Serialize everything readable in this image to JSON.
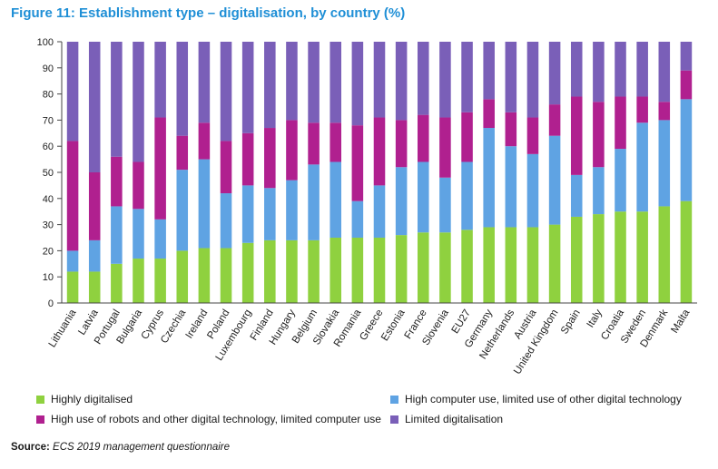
{
  "figure": {
    "title": "Figure 11: Establishment type – digitalisation, by country (%)"
  },
  "source": {
    "label": "Source:",
    "text": "ECS 2019 management questionnaire"
  },
  "colors": {
    "title": "#1f8fd6",
    "series": [
      "#8fd13f",
      "#5fa3e3",
      "#b0208f",
      "#7a5fb8"
    ]
  },
  "legend_text": {
    "s0": "Highly digitalised",
    "s1": "High computer use, limited use of other digital technology",
    "s2": "High use of robots and other digital technology, limited computer use",
    "s3": "Limited digitalisation"
  },
  "chart_data": {
    "type": "bar",
    "stacked": true,
    "title": "Figure 11: Establishment type – digitalisation, by country (%)",
    "xlabel": "",
    "ylabel": "",
    "ylim": [
      0,
      100
    ],
    "yticks": [
      0,
      10,
      20,
      30,
      40,
      50,
      60,
      70,
      80,
      90,
      100
    ],
    "grid": false,
    "legend_position": "bottom",
    "categories": [
      "Lithuania",
      "Latvia",
      "Portugal",
      "Bulgaria",
      "Cyprus",
      "Czechia",
      "Ireland",
      "Poland",
      "Luxembourg",
      "Finland",
      "Hungary",
      "Belgium",
      "Slovakia",
      "Romania",
      "Greece",
      "Estonia",
      "France",
      "Slovenia",
      "EU27",
      "Germany",
      "Netherlands",
      "Austria",
      "United Kingdom",
      "Spain",
      "Italy",
      "Croatia",
      "Sweden",
      "Denmark",
      "Malta"
    ],
    "series": [
      {
        "name": "Highly digitalised",
        "values": [
          12,
          12,
          15,
          17,
          17,
          20,
          21,
          21,
          23,
          24,
          24,
          24,
          25,
          25,
          25,
          26,
          27,
          27,
          28,
          29,
          29,
          29,
          30,
          33,
          34,
          35,
          35,
          37,
          39
        ]
      },
      {
        "name": "High computer use, limited use of other digital technology",
        "values": [
          8,
          12,
          22,
          19,
          15,
          31,
          34,
          21,
          22,
          20,
          23,
          29,
          29,
          14,
          20,
          26,
          27,
          21,
          26,
          38,
          31,
          28,
          34,
          16,
          18,
          24,
          34,
          33,
          39
        ]
      },
      {
        "name": "High use of robots and other digital technology, limited computer use",
        "values": [
          42,
          26,
          19,
          18,
          39,
          13,
          14,
          20,
          20,
          23,
          23,
          16,
          15,
          29,
          26,
          18,
          18,
          23,
          19,
          11,
          13,
          14,
          12,
          30,
          25,
          20,
          10,
          7,
          11
        ]
      },
      {
        "name": "Limited digitalisation",
        "values": [
          38,
          50,
          44,
          46,
          29,
          36,
          31,
          38,
          35,
          33,
          30,
          31,
          31,
          32,
          29,
          30,
          28,
          29,
          27,
          22,
          27,
          29,
          24,
          21,
          23,
          21,
          21,
          23,
          11
        ]
      }
    ]
  }
}
